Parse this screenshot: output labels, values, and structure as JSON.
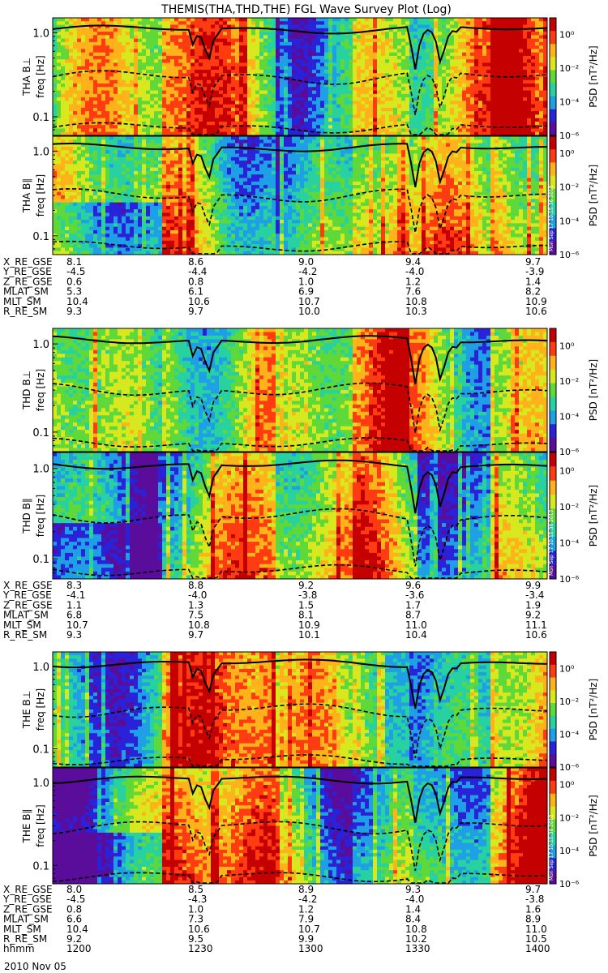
{
  "title": "THEMIS(THA,THD,THE) FGL Wave Survey Plot (Log)",
  "colorbar": {
    "label": "PSD [nT²/Hz]",
    "ticks": [
      "10⁰",
      "10⁻²",
      "10⁻⁴",
      "10⁻⁶"
    ],
    "stamp": "Mon Sep 17 10:15:36 2012"
  },
  "colors": {
    "line": "#000000",
    "scale": [
      "#000000",
      "#5a0c9a",
      "#2a22d8",
      "#1fa0e6",
      "#28d2a0",
      "#5fd83a",
      "#d7e81e",
      "#ffb21a",
      "#ff3b12",
      "#c40000"
    ]
  },
  "chart_data": {
    "type": "heatmap",
    "title": "THEMIS(THA,THD,THE) FGL Wave Survey Plot (Log)",
    "date": "2010 Nov 05",
    "x_unit": "hhmm",
    "xlim": [
      "1200",
      "1400"
    ],
    "ylim_hz": [
      0.06,
      1.5
    ],
    "y_scale": "log",
    "y_ticks": [
      "1.0",
      "0.1"
    ],
    "colorbar_scale": "log",
    "colorbar_range": [
      1e-06,
      10
    ],
    "panels": [
      {
        "probe": "THA",
        "component": "B⊥",
        "ylabel": "freq [Hz]",
        "name": "THA B⊥"
      },
      {
        "probe": "THA",
        "component": "B∥",
        "ylabel": "freq [Hz]",
        "name": "THA B∥"
      },
      {
        "probe": "THD",
        "component": "B⊥",
        "ylabel": "freq [Hz]",
        "name": "THD B⊥"
      },
      {
        "probe": "THD",
        "component": "B∥",
        "ylabel": "freq [Hz]",
        "name": "THD B∥"
      },
      {
        "probe": "THE",
        "component": "B⊥",
        "ylabel": "freq [Hz]",
        "name": "THE B⊥"
      },
      {
        "probe": "THE",
        "component": "B∥",
        "ylabel": "freq [Hz]",
        "name": "THE B∥"
      }
    ],
    "ephemeris": [
      {
        "probe": "THA",
        "rows": [
          {
            "label": "X_RE_GSE",
            "values": [
              "8.1",
              "8.6",
              "9.0",
              "9.4",
              "9.7"
            ]
          },
          {
            "label": "Y_RE_GSE",
            "values": [
              "-4.5",
              "-4.4",
              "-4.2",
              "-4.0",
              "-3.9"
            ]
          },
          {
            "label": "Z_RE_GSE",
            "values": [
              "0.6",
              "0.8",
              "1.0",
              "1.2",
              "1.4"
            ]
          },
          {
            "label": "MLAT_SM",
            "values": [
              "5.3",
              "6.1",
              "6.9",
              "7.6",
              "8.2"
            ]
          },
          {
            "label": "MLT_SM",
            "values": [
              "10.4",
              "10.6",
              "10.7",
              "10.8",
              "10.9"
            ]
          },
          {
            "label": "R_RE_SM",
            "values": [
              "9.3",
              "9.7",
              "10.0",
              "10.3",
              "10.6"
            ]
          }
        ]
      },
      {
        "probe": "THD",
        "rows": [
          {
            "label": "X_RE_GSE",
            "values": [
              "8.3",
              "8.8",
              "9.2",
              "9.6",
              "9.9"
            ]
          },
          {
            "label": "Y_RE_GSE",
            "values": [
              "-4.1",
              "-4.0",
              "-3.8",
              "-3.6",
              "-3.4"
            ]
          },
          {
            "label": "Z_RE_GSE",
            "values": [
              "1.1",
              "1.3",
              "1.5",
              "1.7",
              "1.9"
            ]
          },
          {
            "label": "MLAT_SM",
            "values": [
              "6.8",
              "7.5",
              "8.1",
              "8.7",
              "9.2"
            ]
          },
          {
            "label": "MLT_SM",
            "values": [
              "10.7",
              "10.8",
              "10.9",
              "11.0",
              "11.1"
            ]
          },
          {
            "label": "R_RE_SM",
            "values": [
              "9.3",
              "9.7",
              "10.1",
              "10.4",
              "10.6"
            ]
          }
        ]
      },
      {
        "probe": "THE",
        "rows": [
          {
            "label": "X_RE_GSE",
            "values": [
              "8.0",
              "8.5",
              "8.9",
              "9.3",
              "9.7"
            ]
          },
          {
            "label": "Y_RE_GSE",
            "values": [
              "-4.5",
              "-4.3",
              "-4.2",
              "-4.0",
              "-3.8"
            ]
          },
          {
            "label": "Z_RE_GSE",
            "values": [
              "0.8",
              "1.0",
              "1.2",
              "1.4",
              "1.6"
            ]
          },
          {
            "label": "MLAT_SM",
            "values": [
              "6.6",
              "7.3",
              "7.9",
              "8.4",
              "8.9"
            ]
          },
          {
            "label": "MLT_SM",
            "values": [
              "10.4",
              "10.6",
              "10.7",
              "10.8",
              "11.0"
            ]
          },
          {
            "label": "R_RE_SM",
            "values": [
              "9.2",
              "9.5",
              "9.9",
              "10.2",
              "10.5"
            ]
          },
          {
            "label": "hhmm",
            "values": [
              "1200",
              "1230",
              "1300",
              "1330",
              "1400"
            ]
          }
        ]
      }
    ]
  }
}
